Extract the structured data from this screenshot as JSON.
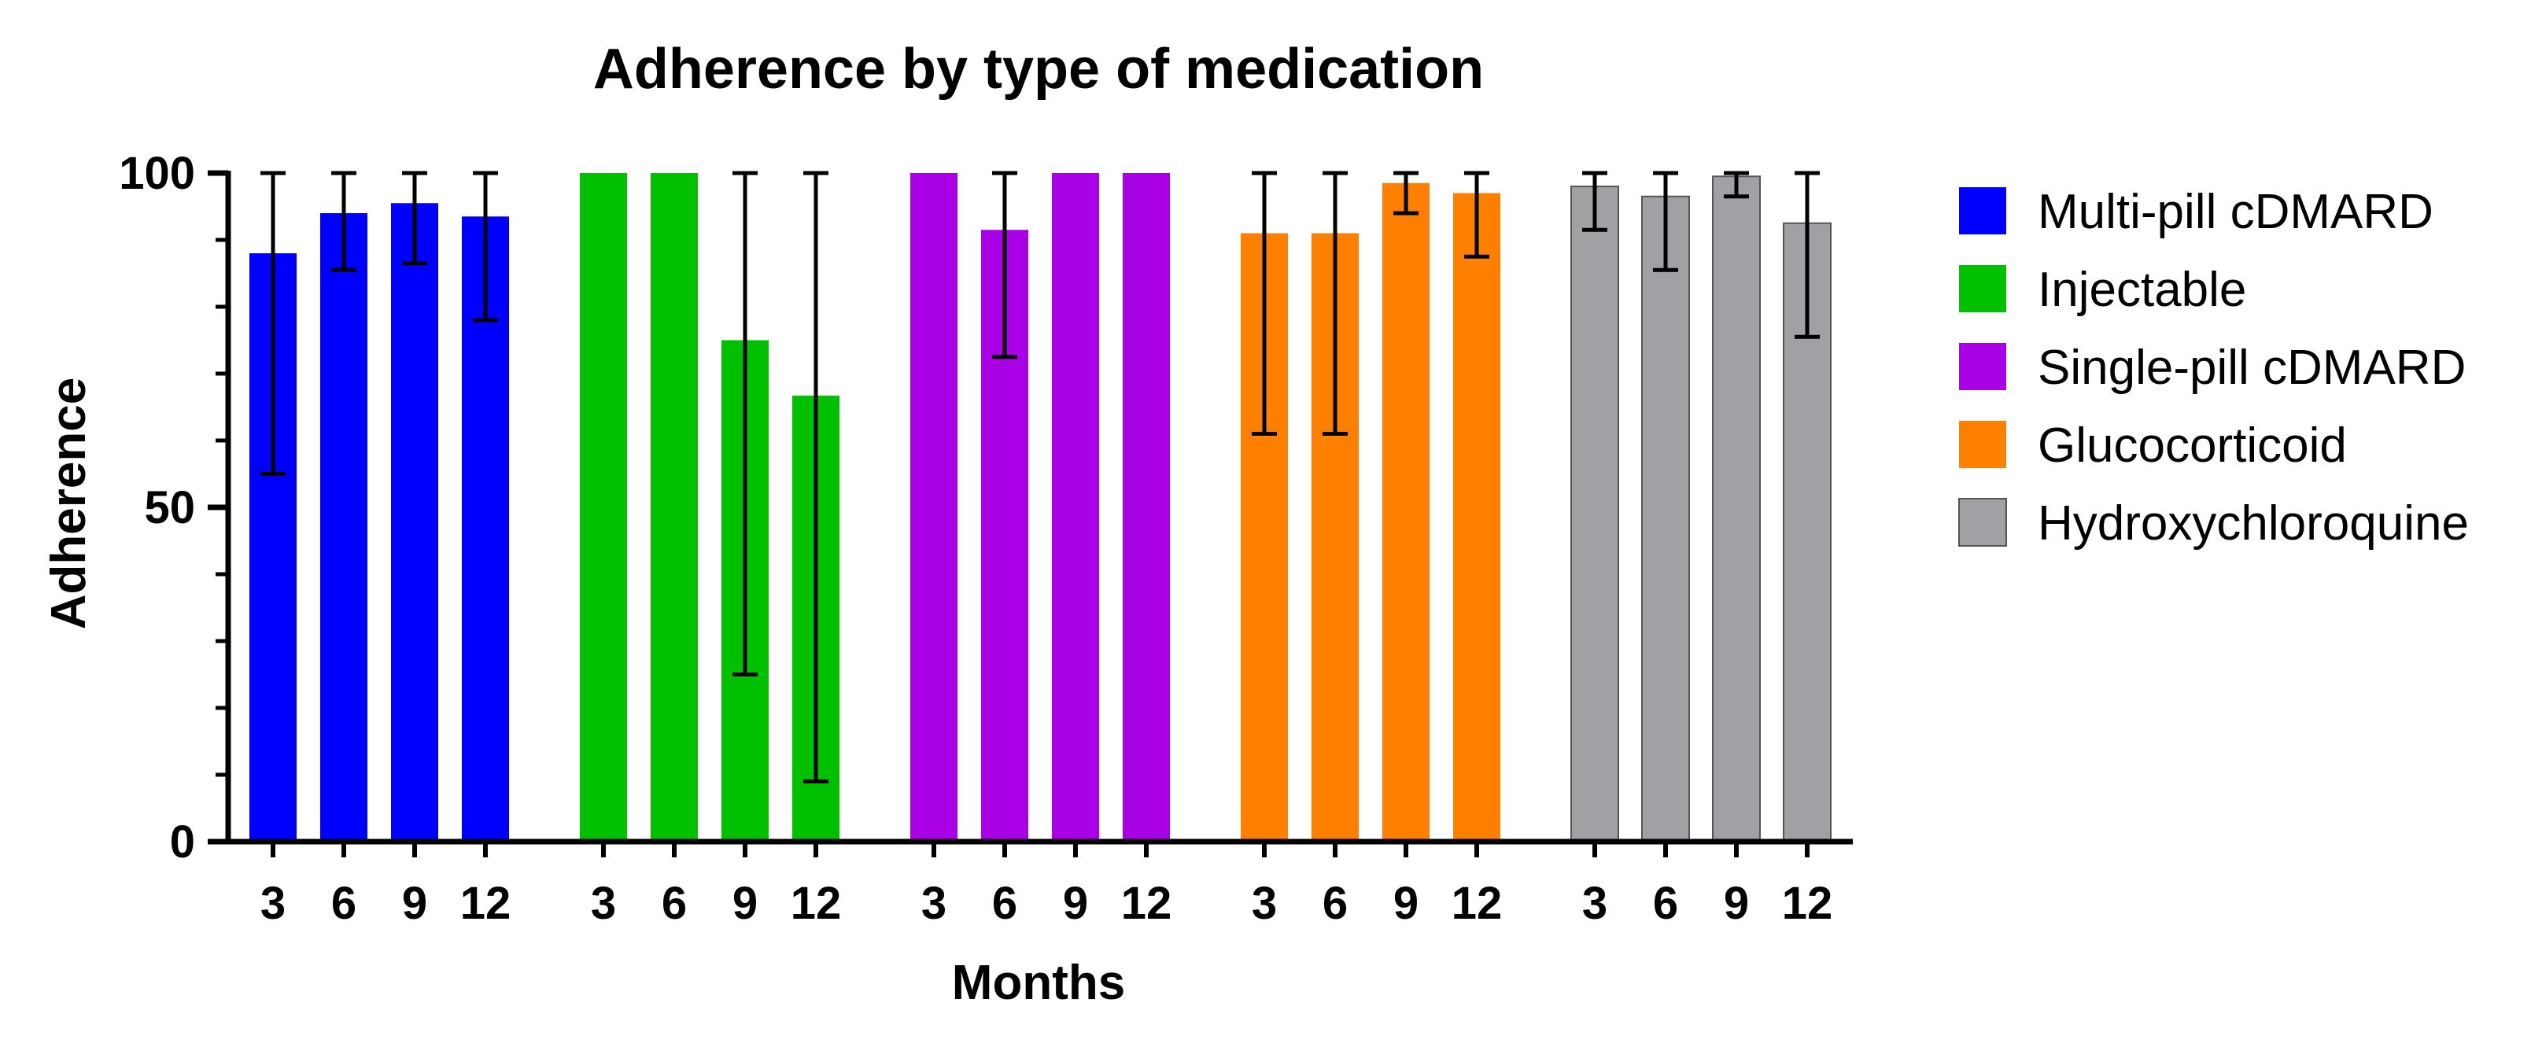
{
  "chart_data": {
    "type": "bar",
    "title": "Adherence by type of medication",
    "xlabel": "Months",
    "ylabel": "Adherence",
    "ylim": [
      0,
      100
    ],
    "yticks": [
      0,
      50,
      100
    ],
    "categories": [
      "3",
      "6",
      "9",
      "12"
    ],
    "grid": false,
    "legend_position": "right",
    "series": [
      {
        "name": "Multi-pill cDMARD",
        "color": "#0000ff",
        "values": [
          88,
          94,
          95.5,
          93.5
        ],
        "error_low": [
          55,
          85.5,
          86.5,
          78
        ],
        "error_high": [
          100,
          100,
          100,
          100
        ]
      },
      {
        "name": "Injectable",
        "color": "#00c000",
        "values": [
          100,
          100,
          75,
          66.7
        ],
        "error_low": [
          100,
          100,
          25,
          9
        ],
        "error_high": [
          100,
          100,
          100,
          100
        ]
      },
      {
        "name": "Single-pill cDMARD",
        "color": "#aa00e6",
        "values": [
          100,
          91.5,
          100,
          100
        ],
        "error_low": [
          100,
          72.5,
          100,
          100
        ],
        "error_high": [
          100,
          100,
          100,
          100
        ]
      },
      {
        "name": "Glucocorticoid",
        "color": "#ff7f00",
        "values": [
          91,
          91,
          98.5,
          97
        ],
        "error_low": [
          61,
          61,
          94,
          87.5
        ],
        "error_high": [
          100,
          100,
          100,
          100
        ]
      },
      {
        "name": "Hydroxychloroquine",
        "color": "#a0a0a5",
        "values": [
          98,
          96.5,
          99.5,
          92.5
        ],
        "error_low": [
          91.5,
          85.5,
          96.5,
          75.5
        ],
        "error_high": [
          100,
          100,
          100,
          100
        ]
      }
    ]
  }
}
